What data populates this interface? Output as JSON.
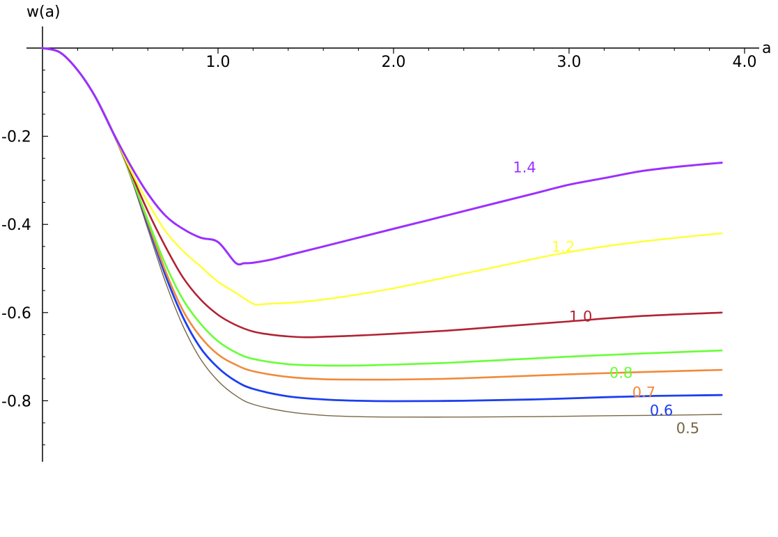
{
  "chart_data": {
    "type": "line",
    "title": "",
    "xlabel": "a",
    "ylabel": "w(a)",
    "xlim": [
      0,
      4.0
    ],
    "ylim": [
      -0.94,
      0.0
    ],
    "grid": false,
    "x_ticks": [
      {
        "value": 1.0,
        "label": "1.0"
      },
      {
        "value": 2.0,
        "label": "2.0"
      },
      {
        "value": 3.0,
        "label": "3.0"
      },
      {
        "value": 4.0,
        "label": "4.0"
      }
    ],
    "y_ticks": [
      {
        "value": -0.2,
        "label": "-0.2"
      },
      {
        "value": -0.4,
        "label": "-0.4"
      },
      {
        "value": -0.6,
        "label": "-0.6"
      },
      {
        "value": -0.8,
        "label": "-0.8"
      }
    ],
    "series": [
      {
        "name": "1.4",
        "color": "#9b30ff",
        "stroke": 3.0,
        "label_at": [
          2.68,
          -0.282
        ],
        "points": [
          [
            0,
            0
          ],
          [
            0.1,
            -0.01
          ],
          [
            0.2,
            -0.05
          ],
          [
            0.3,
            -0.11
          ],
          [
            0.4,
            -0.19
          ],
          [
            0.5,
            -0.265
          ],
          [
            0.6,
            -0.33
          ],
          [
            0.7,
            -0.38
          ],
          [
            0.8,
            -0.41
          ],
          [
            0.9,
            -0.43
          ],
          [
            1.0,
            -0.44
          ],
          [
            1.1,
            -0.487
          ],
          [
            1.15,
            -0.488
          ],
          [
            1.2,
            -0.487
          ],
          [
            1.3,
            -0.48
          ],
          [
            1.4,
            -0.47
          ],
          [
            1.6,
            -0.45
          ],
          [
            1.8,
            -0.43
          ],
          [
            2.0,
            -0.41
          ],
          [
            2.2,
            -0.39
          ],
          [
            2.4,
            -0.37
          ],
          [
            2.6,
            -0.35
          ],
          [
            2.8,
            -0.33
          ],
          [
            3.0,
            -0.31
          ],
          [
            3.2,
            -0.295
          ],
          [
            3.4,
            -0.28
          ],
          [
            3.6,
            -0.27
          ],
          [
            3.87,
            -0.26
          ]
        ]
      },
      {
        "name": "1.2",
        "color": "#ffff33",
        "stroke": 2.4,
        "label_at": [
          2.9,
          -0.462
        ],
        "points": [
          [
            0,
            0
          ],
          [
            0.1,
            -0.01
          ],
          [
            0.2,
            -0.05
          ],
          [
            0.3,
            -0.11
          ],
          [
            0.4,
            -0.19
          ],
          [
            0.5,
            -0.275
          ],
          [
            0.6,
            -0.35
          ],
          [
            0.7,
            -0.415
          ],
          [
            0.8,
            -0.46
          ],
          [
            0.9,
            -0.495
          ],
          [
            1.0,
            -0.53
          ],
          [
            1.1,
            -0.555
          ],
          [
            1.2,
            -0.58
          ],
          [
            1.25,
            -0.581
          ],
          [
            1.3,
            -0.58
          ],
          [
            1.5,
            -0.575
          ],
          [
            1.7,
            -0.565
          ],
          [
            2.0,
            -0.545
          ],
          [
            2.3,
            -0.52
          ],
          [
            2.6,
            -0.495
          ],
          [
            2.9,
            -0.47
          ],
          [
            3.2,
            -0.45
          ],
          [
            3.5,
            -0.435
          ],
          [
            3.87,
            -0.42
          ]
        ]
      },
      {
        "name": "1.0",
        "color": "#b22234",
        "stroke": 2.6,
        "label_at": [
          3.0,
          -0.62
        ],
        "points": [
          [
            0,
            0
          ],
          [
            0.1,
            -0.01
          ],
          [
            0.2,
            -0.05
          ],
          [
            0.3,
            -0.11
          ],
          [
            0.4,
            -0.19
          ],
          [
            0.5,
            -0.28
          ],
          [
            0.6,
            -0.37
          ],
          [
            0.7,
            -0.45
          ],
          [
            0.8,
            -0.52
          ],
          [
            0.9,
            -0.57
          ],
          [
            1.0,
            -0.605
          ],
          [
            1.1,
            -0.628
          ],
          [
            1.2,
            -0.643
          ],
          [
            1.3,
            -0.65
          ],
          [
            1.4,
            -0.654
          ],
          [
            1.5,
            -0.656
          ],
          [
            1.6,
            -0.655
          ],
          [
            1.8,
            -0.652
          ],
          [
            2.0,
            -0.648
          ],
          [
            2.3,
            -0.641
          ],
          [
            2.6,
            -0.632
          ],
          [
            3.0,
            -0.62
          ],
          [
            3.4,
            -0.608
          ],
          [
            3.87,
            -0.6
          ]
        ]
      },
      {
        "name": "0.8",
        "color": "#66ff33",
        "stroke": 2.6,
        "label_at": [
          3.23,
          -0.748
        ],
        "points": [
          [
            0,
            0
          ],
          [
            0.1,
            -0.01
          ],
          [
            0.2,
            -0.05
          ],
          [
            0.3,
            -0.11
          ],
          [
            0.4,
            -0.19
          ],
          [
            0.5,
            -0.285
          ],
          [
            0.6,
            -0.39
          ],
          [
            0.7,
            -0.49
          ],
          [
            0.8,
            -0.57
          ],
          [
            0.9,
            -0.625
          ],
          [
            1.0,
            -0.665
          ],
          [
            1.1,
            -0.69
          ],
          [
            1.2,
            -0.705
          ],
          [
            1.4,
            -0.717
          ],
          [
            1.6,
            -0.72
          ],
          [
            1.8,
            -0.72
          ],
          [
            2.0,
            -0.718
          ],
          [
            2.3,
            -0.714
          ],
          [
            2.6,
            -0.708
          ],
          [
            3.0,
            -0.7
          ],
          [
            3.4,
            -0.693
          ],
          [
            3.87,
            -0.686
          ]
        ]
      },
      {
        "name": "0.7",
        "color": "#f08a3c",
        "stroke": 2.6,
        "label_at": [
          3.36,
          -0.792
        ],
        "points": [
          [
            0,
            0
          ],
          [
            0.1,
            -0.01
          ],
          [
            0.2,
            -0.05
          ],
          [
            0.3,
            -0.11
          ],
          [
            0.4,
            -0.19
          ],
          [
            0.5,
            -0.285
          ],
          [
            0.6,
            -0.395
          ],
          [
            0.7,
            -0.505
          ],
          [
            0.8,
            -0.595
          ],
          [
            0.9,
            -0.655
          ],
          [
            1.0,
            -0.695
          ],
          [
            1.1,
            -0.718
          ],
          [
            1.2,
            -0.733
          ],
          [
            1.4,
            -0.746
          ],
          [
            1.6,
            -0.751
          ],
          [
            1.8,
            -0.752
          ],
          [
            2.0,
            -0.752
          ],
          [
            2.3,
            -0.75
          ],
          [
            2.6,
            -0.746
          ],
          [
            3.0,
            -0.74
          ],
          [
            3.4,
            -0.735
          ],
          [
            3.87,
            -0.73
          ]
        ]
      },
      {
        "name": "0.6",
        "color": "#1c3ff0",
        "stroke": 2.8,
        "label_at": [
          3.46,
          -0.833
        ],
        "points": [
          [
            0,
            0
          ],
          [
            0.1,
            -0.01
          ],
          [
            0.2,
            -0.05
          ],
          [
            0.3,
            -0.11
          ],
          [
            0.4,
            -0.19
          ],
          [
            0.5,
            -0.285
          ],
          [
            0.6,
            -0.4
          ],
          [
            0.7,
            -0.515
          ],
          [
            0.8,
            -0.61
          ],
          [
            0.9,
            -0.68
          ],
          [
            1.0,
            -0.725
          ],
          [
            1.1,
            -0.755
          ],
          [
            1.2,
            -0.773
          ],
          [
            1.4,
            -0.79
          ],
          [
            1.6,
            -0.797
          ],
          [
            1.8,
            -0.8
          ],
          [
            2.0,
            -0.801
          ],
          [
            2.4,
            -0.8
          ],
          [
            2.8,
            -0.797
          ],
          [
            3.2,
            -0.792
          ],
          [
            3.5,
            -0.789
          ],
          [
            3.87,
            -0.787
          ]
        ]
      },
      {
        "name": "0.5",
        "color": "#776644",
        "stroke": 1.4,
        "label_at": [
          3.61,
          -0.874
        ],
        "points": [
          [
            0,
            0
          ],
          [
            0.1,
            -0.01
          ],
          [
            0.2,
            -0.05
          ],
          [
            0.3,
            -0.11
          ],
          [
            0.4,
            -0.19
          ],
          [
            0.5,
            -0.29
          ],
          [
            0.6,
            -0.41
          ],
          [
            0.7,
            -0.53
          ],
          [
            0.8,
            -0.63
          ],
          [
            0.9,
            -0.705
          ],
          [
            1.0,
            -0.755
          ],
          [
            1.1,
            -0.788
          ],
          [
            1.2,
            -0.808
          ],
          [
            1.4,
            -0.825
          ],
          [
            1.6,
            -0.833
          ],
          [
            1.8,
            -0.836
          ],
          [
            2.0,
            -0.837
          ],
          [
            2.4,
            -0.837
          ],
          [
            2.8,
            -0.836
          ],
          [
            3.2,
            -0.834
          ],
          [
            3.5,
            -0.833
          ],
          [
            3.87,
            -0.831
          ]
        ]
      }
    ]
  }
}
